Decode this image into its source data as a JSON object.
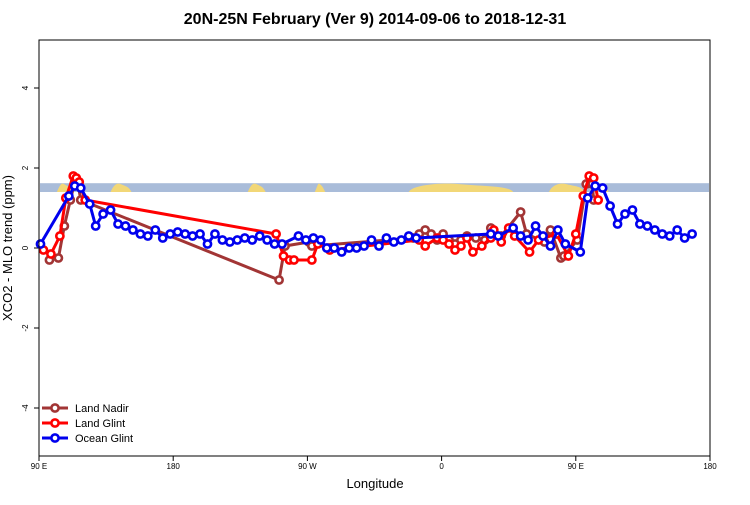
{
  "chart_data": {
    "type": "line",
    "title": "20N-25N February (Ver 9)   2014-09-06 to 2018-12-31",
    "xlabel": "Longitude",
    "ylabel": "XCO2 - MLO trend (ppm)",
    "xlim": [
      0,
      450
    ],
    "ylim": [
      -5.2,
      5.2
    ],
    "x_ticks": [
      {
        "x": 0,
        "label": "90 E"
      },
      {
        "x": 90,
        "label": "180"
      },
      {
        "x": 180,
        "label": "90 W"
      },
      {
        "x": 270,
        "label": "0"
      },
      {
        "x": 360,
        "label": "90 E"
      },
      {
        "x": 450,
        "label": "180"
      }
    ],
    "y_ticks": [
      -4,
      -2,
      0,
      2,
      4
    ],
    "grid": false,
    "legend_position": "bottom-left",
    "map_strip": {
      "ymin": 1.4,
      "ymax": 1.62,
      "ocean_color": "#a9bcd9",
      "land_color": "#f2d777"
    },
    "series": [
      {
        "name": "Land Nadir",
        "color": "#a23535",
        "points": [
          [
            7,
            -0.3
          ],
          [
            13,
            -0.25
          ],
          [
            17,
            0.55
          ],
          [
            21,
            1.2
          ],
          [
            24,
            1.65
          ],
          [
            26,
            1.65
          ],
          [
            28,
            1.2
          ],
          [
            161,
            -0.8
          ],
          [
            165,
            0.05
          ],
          [
            181,
            0.15
          ],
          [
            183,
            0.05
          ],
          [
            251,
            0.25
          ],
          [
            255,
            0.35
          ],
          [
            259,
            0.45
          ],
          [
            263,
            0.35
          ],
          [
            267,
            0.2
          ],
          [
            271,
            0.35
          ],
          [
            275,
            0.2
          ],
          [
            279,
            0.1
          ],
          [
            283,
            0.2
          ],
          [
            287,
            0.3
          ],
          [
            293,
            0.25
          ],
          [
            299,
            0.2
          ],
          [
            303,
            0.5
          ],
          [
            305,
            0.4
          ],
          [
            310,
            0.3
          ],
          [
            323,
            0.9
          ],
          [
            327,
            0.35
          ],
          [
            339,
            0.15
          ],
          [
            343,
            0.45
          ],
          [
            350,
            -0.25
          ],
          [
            352,
            -0.2
          ],
          [
            361,
            0.2
          ],
          [
            367,
            1.6
          ],
          [
            371,
            1.6
          ],
          [
            372,
            1.2
          ]
        ]
      },
      {
        "name": "Land Glint",
        "color": "#ff0000",
        "points": [
          [
            3,
            -0.05
          ],
          [
            8,
            -0.15
          ],
          [
            14,
            0.3
          ],
          [
            18,
            1.25
          ],
          [
            23,
            1.8
          ],
          [
            25,
            1.75
          ],
          [
            27,
            1.65
          ],
          [
            31,
            1.2
          ],
          [
            159,
            0.35
          ],
          [
            164,
            -0.2
          ],
          [
            168,
            -0.3
          ],
          [
            171,
            -0.3
          ],
          [
            183,
            -0.3
          ],
          [
            187,
            0.1
          ],
          [
            195,
            -0.05
          ],
          [
            255,
            0.2
          ],
          [
            259,
            0.05
          ],
          [
            267,
            0.25
          ],
          [
            271,
            0.2
          ],
          [
            275,
            0.1
          ],
          [
            279,
            -0.05
          ],
          [
            283,
            0.05
          ],
          [
            287,
            0.25
          ],
          [
            291,
            -0.1
          ],
          [
            297,
            0.05
          ],
          [
            303,
            0.25
          ],
          [
            305,
            0.45
          ],
          [
            310,
            0.15
          ],
          [
            315,
            0.5
          ],
          [
            319,
            0.3
          ],
          [
            329,
            -0.1
          ],
          [
            335,
            0.2
          ],
          [
            347,
            0.35
          ],
          [
            355,
            -0.2
          ],
          [
            360,
            0.35
          ],
          [
            365,
            1.3
          ],
          [
            369,
            1.8
          ],
          [
            372,
            1.75
          ],
          [
            375,
            1.2
          ]
        ]
      },
      {
        "name": "Ocean Glint",
        "color": "#0000ee",
        "points": [
          [
            1,
            0.1
          ],
          [
            20,
            1.3
          ],
          [
            24,
            1.55
          ],
          [
            28,
            1.5
          ],
          [
            34,
            1.1
          ],
          [
            38,
            0.55
          ],
          [
            43,
            0.85
          ],
          [
            48,
            0.95
          ],
          [
            53,
            0.6
          ],
          [
            58,
            0.55
          ],
          [
            63,
            0.45
          ],
          [
            68,
            0.35
          ],
          [
            73,
            0.3
          ],
          [
            78,
            0.45
          ],
          [
            83,
            0.25
          ],
          [
            88,
            0.35
          ],
          [
            93,
            0.4
          ],
          [
            98,
            0.35
          ],
          [
            103,
            0.3
          ],
          [
            108,
            0.35
          ],
          [
            113,
            0.1
          ],
          [
            118,
            0.35
          ],
          [
            123,
            0.2
          ],
          [
            128,
            0.15
          ],
          [
            133,
            0.2
          ],
          [
            138,
            0.25
          ],
          [
            143,
            0.2
          ],
          [
            148,
            0.3
          ],
          [
            153,
            0.2
          ],
          [
            158,
            0.1
          ],
          [
            163,
            0.1
          ],
          [
            174,
            0.3
          ],
          [
            179,
            0.2
          ],
          [
            184,
            0.25
          ],
          [
            189,
            0.2
          ],
          [
            193,
            0.0
          ],
          [
            198,
            0.0
          ],
          [
            203,
            -0.1
          ],
          [
            208,
            0.0
          ],
          [
            213,
            0.0
          ],
          [
            218,
            0.05
          ],
          [
            223,
            0.2
          ],
          [
            228,
            0.05
          ],
          [
            233,
            0.25
          ],
          [
            238,
            0.15
          ],
          [
            243,
            0.2
          ],
          [
            248,
            0.3
          ],
          [
            253,
            0.25
          ],
          [
            303,
            0.35
          ],
          [
            308,
            0.3
          ],
          [
            318,
            0.5
          ],
          [
            323,
            0.3
          ],
          [
            328,
            0.2
          ],
          [
            333,
            0.55
          ],
          [
            338,
            0.3
          ],
          [
            343,
            0.05
          ],
          [
            348,
            0.45
          ],
          [
            353,
            0.1
          ],
          [
            363,
            -0.1
          ],
          [
            368,
            1.25
          ],
          [
            373,
            1.55
          ],
          [
            378,
            1.5
          ],
          [
            383,
            1.05
          ],
          [
            388,
            0.6
          ],
          [
            393,
            0.85
          ],
          [
            398,
            0.95
          ],
          [
            403,
            0.6
          ],
          [
            408,
            0.55
          ],
          [
            413,
            0.45
          ],
          [
            418,
            0.35
          ],
          [
            423,
            0.3
          ],
          [
            428,
            0.45
          ],
          [
            433,
            0.25
          ],
          [
            438,
            0.35
          ]
        ]
      }
    ]
  }
}
